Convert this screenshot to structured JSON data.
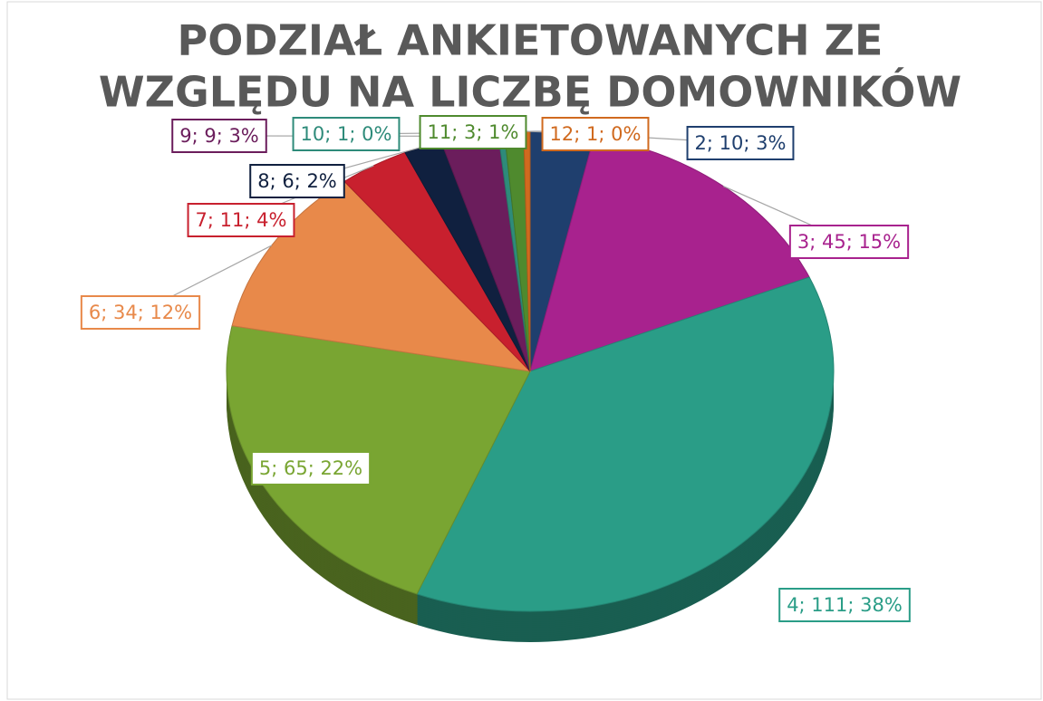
{
  "chart_data": {
    "type": "pie",
    "title": [
      "PODZIAŁ ANKIETOWANYCH ZE",
      "WZGLĘDU NA LICZBĘ DOMOWNIKÓW"
    ],
    "categories": [
      "2",
      "3",
      "4",
      "5",
      "6",
      "7",
      "8",
      "9",
      "10",
      "11",
      "12"
    ],
    "values": [
      10,
      45,
      111,
      65,
      34,
      11,
      6,
      9,
      1,
      3,
      1
    ],
    "value_labels": [
      "2; 10; 3%",
      "3; 45; 15%",
      "4; 111; 38%",
      "5; 65; 22%",
      "6; 34; 12%",
      "7; 11; 4%",
      "8; 6; 2%",
      "9; 9; 3%",
      "10; 1; 0%",
      "11; 3; 1%",
      "12; 1; 0%"
    ],
    "colors": [
      "#1f3f6e",
      "#a8228e",
      "#2a9d87",
      "#79a532",
      "#e8894a",
      "#c8202e",
      "#10203f",
      "#6b1d5c",
      "#2e8b7a",
      "#4f8a2e",
      "#d06a1f"
    ]
  }
}
